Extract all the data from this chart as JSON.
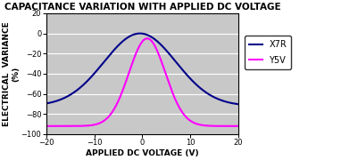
{
  "title": "CAPACITANCE VARIATION WITH APPLIED DC VOLTAGE",
  "xlabel": "APPLIED DC VOLTAGE (V)",
  "ylabel_line1": "ELECTRICAL  VARIANCE",
  "ylabel_line2": "(%)",
  "xlim": [
    -20,
    20
  ],
  "ylim": [
    -100,
    20
  ],
  "yticks": [
    20,
    0,
    -20,
    -40,
    -60,
    -80,
    -100
  ],
  "xticks": [
    -20,
    -10,
    0,
    10,
    20
  ],
  "x7r_color": "#00008B",
  "y5v_color": "#FF00FF",
  "bg_color": "#C8C8C8",
  "fig_bg": "#FFFFFF",
  "grid_color": "#FFFFFF",
  "title_fontsize": 7.5,
  "axis_fontsize": 6.5,
  "tick_fontsize": 6,
  "legend_fontsize": 7,
  "x7r_peak_x": -0.5,
  "x7r_peak_y": 0,
  "x7r_sigma": 7.5,
  "x7r_floor": -72,
  "y5v_peak_x": 1.0,
  "y5v_peak_y": -5,
  "y5v_sigma": 3.8,
  "y5v_floor": -92
}
